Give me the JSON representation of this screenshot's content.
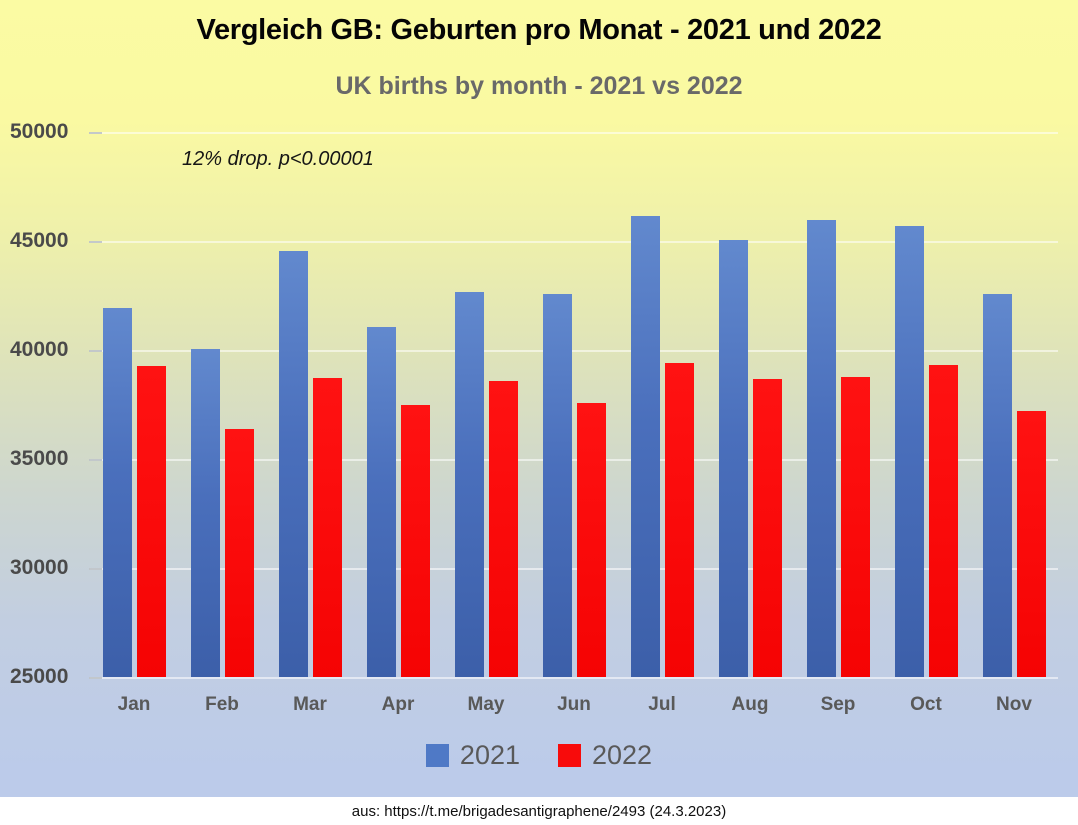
{
  "title": "Vergleich GB: Geburten pro Monat - 2021 und 2022",
  "subtitle": "UK births by month - 2021 vs 2022",
  "annotation": "12% drop. p<0.00001",
  "footer": "aus: https://t.me/brigadesantigraphene/2493 (24.3.2023)",
  "colors": {
    "series_2021": "#4f79c6",
    "series_2022": "#f80b0b",
    "background_top": "#fbfba3",
    "background_bottom": "#bccbea",
    "gridline": "#ffffff",
    "title_text": "#050505",
    "subtitle_text": "#696969",
    "axis_text": "#4a4a4a"
  },
  "chart_data": {
    "type": "bar",
    "title": "Vergleich GB: Geburten pro Monat - 2021 und 2022",
    "subtitle": "UK births by month - 2021 vs 2022",
    "annotation": "12% drop. p<0.00001",
    "categories": [
      "Jan",
      "Feb",
      "Mar",
      "Apr",
      "May",
      "Jun",
      "Jul",
      "Aug",
      "Sep",
      "Oct",
      "Nov"
    ],
    "series": [
      {
        "name": "2021",
        "color": "#4f79c6",
        "values": [
          41950,
          40050,
          44550,
          41050,
          42650,
          42550,
          46150,
          45050,
          45950,
          45700,
          42550
        ]
      },
      {
        "name": "2022",
        "color": "#f80b0b",
        "values": [
          39250,
          36400,
          38700,
          37500,
          38600,
          37550,
          39400,
          38650,
          38750,
          39300,
          37200
        ]
      }
    ],
    "xlabel": "",
    "ylabel": "",
    "ylim": [
      25000,
      50000
    ],
    "yticks": [
      25000,
      30000,
      35000,
      40000,
      45000,
      50000
    ],
    "grid": true,
    "legend_position": "bottom"
  }
}
